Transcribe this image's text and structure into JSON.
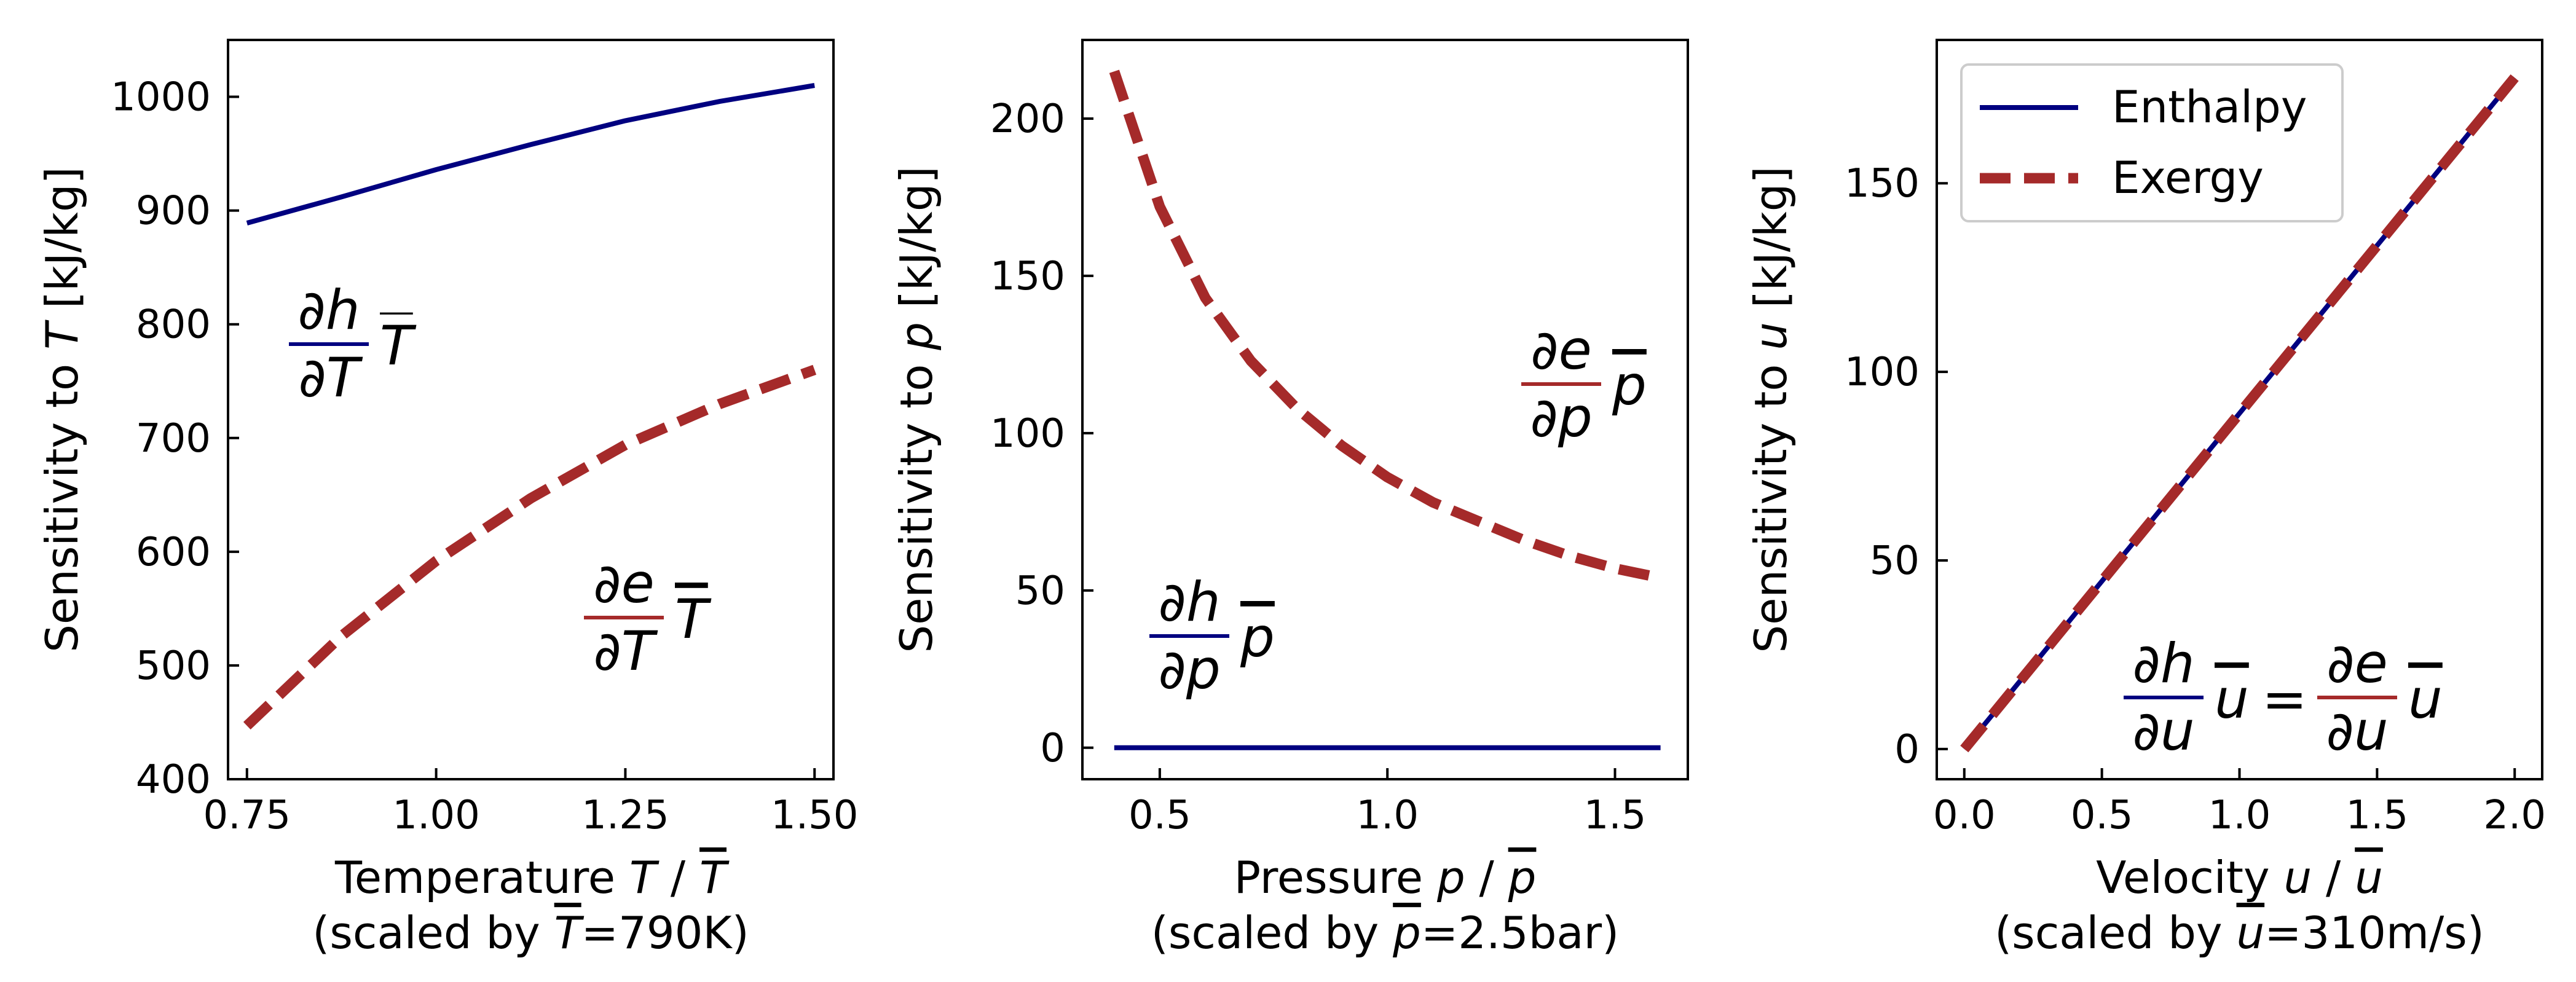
{
  "colors": {
    "enthalpy": "#000080",
    "exergy": "#a52a2a",
    "axis": "#000000"
  },
  "legend": {
    "placement": "upper-left of third panel",
    "entries": [
      "Enthalpy",
      "Exergy"
    ]
  },
  "chart_data": [
    {
      "type": "line",
      "xlabel_prefix": "Temperature ",
      "xlabel_var": "T",
      "xlabel_sep": " / ",
      "xlabel_bar": "T",
      "xlabel2_prefix": "(scaled by ",
      "xlabel2_bar": "T",
      "xlabel2_suffix": "=790K)",
      "ylabel_prefix": "Sensitivity to ",
      "ylabel_var": "T",
      "ylabel_suffix": " [kJ/kg]",
      "xlim": [
        0.725,
        1.525
      ],
      "ylim": [
        400,
        1050
      ],
      "xticks": [
        "0.75",
        "1.00",
        "1.25",
        "1.50"
      ],
      "xtick_values": [
        0.75,
        1.0,
        1.25,
        1.5
      ],
      "yticks": [
        "400",
        "500",
        "600",
        "700",
        "800",
        "900",
        "1000"
      ],
      "ytick_values": [
        400,
        500,
        600,
        700,
        800,
        900,
        1000
      ],
      "series": [
        {
          "name": "Enthalpy",
          "style": "solid",
          "x": [
            0.75,
            0.875,
            1.0,
            1.125,
            1.25,
            1.375,
            1.5
          ],
          "y": [
            889,
            912,
            936,
            958,
            979,
            996,
            1010
          ]
        },
        {
          "name": "Exergy",
          "style": "dashed",
          "x": [
            0.75,
            0.875,
            1.0,
            1.125,
            1.25,
            1.375,
            1.5
          ],
          "y": [
            447,
            526,
            592,
            647,
            694,
            730,
            760
          ]
        }
      ],
      "annotations": [
        {
          "num": "∂h",
          "den": "∂T",
          "bar": "T",
          "series": "Enthalpy"
        },
        {
          "num": "∂e",
          "den": "∂T",
          "bar": "T",
          "series": "Exergy"
        }
      ]
    },
    {
      "type": "line",
      "xlabel_prefix": "Pressure ",
      "xlabel_var": "p",
      "xlabel_sep": " / ",
      "xlabel_bar": "p",
      "xlabel2_prefix": "(scaled by ",
      "xlabel2_bar": "p",
      "xlabel2_suffix": "=2.5bar)",
      "ylabel_prefix": "Sensitivity to ",
      "ylabel_var": "p",
      "ylabel_suffix": " [kJ/kg]",
      "xlim": [
        0.33,
        1.66
      ],
      "ylim": [
        -10,
        225
      ],
      "xticks": [
        "0.5",
        "1.0",
        "1.5"
      ],
      "xtick_values": [
        0.5,
        1.0,
        1.5
      ],
      "yticks": [
        "0",
        "50",
        "100",
        "150",
        "200"
      ],
      "ytick_values": [
        0,
        50,
        100,
        150,
        200
      ],
      "series": [
        {
          "name": "Enthalpy",
          "style": "solid",
          "x": [
            0.4,
            1.6
          ],
          "y": [
            0,
            0
          ]
        },
        {
          "name": "Exergy",
          "style": "dashed",
          "x": [
            0.4,
            0.5,
            0.6,
            0.7,
            0.8,
            0.9,
            1.0,
            1.1,
            1.2,
            1.3,
            1.4,
            1.5,
            1.6
          ],
          "y": [
            215,
            172,
            143,
            123,
            108,
            96,
            86,
            78,
            72,
            66,
            61,
            57,
            54
          ]
        }
      ],
      "annotations": [
        {
          "num": "∂e",
          "den": "∂p",
          "bar": "p",
          "series": "Exergy"
        },
        {
          "num": "∂h",
          "den": "∂p",
          "bar": "p",
          "series": "Enthalpy"
        }
      ]
    },
    {
      "type": "line",
      "xlabel_prefix": "Velocity ",
      "xlabel_var": "u",
      "xlabel_sep": " / ",
      "xlabel_bar": "u",
      "xlabel2_prefix": "(scaled by ",
      "xlabel2_bar": "u",
      "xlabel2_suffix": "=310m/s)",
      "ylabel_prefix": "Sensitivity to ",
      "ylabel_var": "u",
      "ylabel_suffix": " [kJ/kg]",
      "xlim": [
        -0.1,
        2.1
      ],
      "ylim": [
        -8,
        188
      ],
      "xticks": [
        "0.0",
        "0.5",
        "1.0",
        "1.5",
        "2.0"
      ],
      "xtick_values": [
        0.0,
        0.5,
        1.0,
        1.5,
        2.0
      ],
      "yticks": [
        "0",
        "50",
        "100",
        "150"
      ],
      "ytick_values": [
        0,
        50,
        100,
        150
      ],
      "series": [
        {
          "name": "Enthalpy",
          "style": "solid",
          "x": [
            0,
            2
          ],
          "y": [
            0,
            178
          ]
        },
        {
          "name": "Exergy",
          "style": "dashed",
          "x": [
            0,
            2
          ],
          "y": [
            0,
            178
          ]
        }
      ],
      "annotations": [
        {
          "num": "∂h",
          "den": "∂u",
          "bar": "u",
          "series": "Enthalpy",
          "equals": "="
        },
        {
          "num": "∂e",
          "den": "∂u",
          "bar": "u",
          "series": "Exergy"
        }
      ]
    }
  ]
}
